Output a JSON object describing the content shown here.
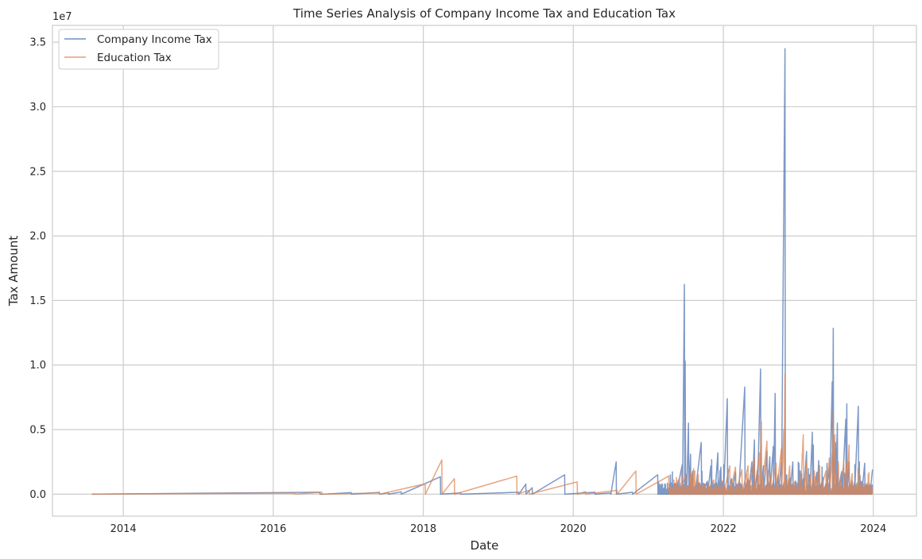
{
  "chart_data": {
    "type": "line",
    "title": "Time Series Analysis of Company Income Tax and Education Tax",
    "xlabel": "Date",
    "ylabel": "Tax Amount",
    "y_offset_label": "1e7",
    "y_scale_multiplier": 10000000,
    "xlim": [
      "2013-01-21",
      "2024-07-29"
    ],
    "ylim": [
      -1700000,
      36300000
    ],
    "x_ticks": [
      "2014",
      "2016",
      "2018",
      "2020",
      "2022",
      "2024"
    ],
    "y_ticks": [
      0,
      5000000,
      10000000,
      15000000,
      20000000,
      25000000,
      30000000,
      35000000
    ],
    "y_tick_labels": [
      "0.0",
      "0.5",
      "1.0",
      "1.5",
      "2.0",
      "2.5",
      "3.0",
      "3.5"
    ],
    "grid": true,
    "legend_position": "top-left",
    "series": [
      {
        "name": "Company Income Tax",
        "color": "#4c72b0",
        "points": [
          [
            "2013-08-01",
            0
          ],
          [
            "2016-08-15",
            150000
          ],
          [
            "2016-09-01",
            0
          ],
          [
            "2017-01-15",
            120000
          ],
          [
            "2017-06-01",
            140000
          ],
          [
            "2017-07-15",
            110000
          ],
          [
            "2017-09-15",
            180000
          ],
          [
            "2018-03-25",
            1350000
          ],
          [
            "2018-07-01",
            100000
          ],
          [
            "2019-04-10",
            150000
          ],
          [
            "2019-05-15",
            780000
          ],
          [
            "2019-06-15",
            500000
          ],
          [
            "2019-11-20",
            1500000
          ],
          [
            "2020-04-15",
            150000
          ],
          [
            "2020-07-01",
            100000
          ],
          [
            "2020-07-28",
            2500000
          ],
          [
            "2020-10-15",
            150000
          ],
          [
            "2021-02-15",
            1500000
          ],
          [
            "2021-05-15",
            500000
          ],
          [
            "2021-06-15",
            2300000
          ],
          [
            "2021-06-25",
            16250000
          ],
          [
            "2021-06-29",
            10300000
          ],
          [
            "2021-07-05",
            1500000
          ],
          [
            "2021-07-15",
            5500000
          ],
          [
            "2021-07-25",
            3100000
          ],
          [
            "2021-08-05",
            1800000
          ],
          [
            "2021-08-15",
            600000
          ],
          [
            "2021-09-15",
            4000000
          ],
          [
            "2021-10-15",
            1000000
          ],
          [
            "2021-11-01",
            2200000
          ],
          [
            "2021-11-20",
            800000
          ],
          [
            "2021-12-05",
            3200000
          ],
          [
            "2021-12-20",
            2100000
          ],
          [
            "2022-01-01",
            1000000
          ],
          [
            "2022-01-20",
            7400000
          ],
          [
            "2022-02-10",
            1200000
          ],
          [
            "2022-03-01",
            1700000
          ],
          [
            "2022-03-15",
            800000
          ],
          [
            "2022-04-15",
            8300000
          ],
          [
            "2022-05-01",
            1200000
          ],
          [
            "2022-05-20",
            2500000
          ],
          [
            "2022-06-01",
            4200000
          ],
          [
            "2022-06-15",
            1800000
          ],
          [
            "2022-07-01",
            9700000
          ],
          [
            "2022-07-15",
            2200000
          ],
          [
            "2022-08-01",
            3300000
          ],
          [
            "2022-08-15",
            2900000
          ],
          [
            "2022-09-01",
            3700000
          ],
          [
            "2022-09-10",
            7800000
          ],
          [
            "2022-09-25",
            1500000
          ],
          [
            "2022-10-10",
            2500000
          ],
          [
            "2022-10-28",
            34500000
          ],
          [
            "2022-11-05",
            1500000
          ],
          [
            "2022-11-20",
            1200000
          ],
          [
            "2022-12-05",
            2500000
          ],
          [
            "2022-12-20",
            1000000
          ],
          [
            "2023-01-10",
            1800000
          ],
          [
            "2023-01-25",
            1200000
          ],
          [
            "2023-02-10",
            3300000
          ],
          [
            "2023-02-25",
            1500000
          ],
          [
            "2023-03-10",
            4800000
          ],
          [
            "2023-03-15",
            3800000
          ],
          [
            "2023-04-01",
            1700000
          ],
          [
            "2023-04-10",
            2600000
          ],
          [
            "2023-05-01",
            1300000
          ],
          [
            "2023-05-15",
            800000
          ],
          [
            "2023-06-01",
            2000000
          ],
          [
            "2023-06-15",
            8700000
          ],
          [
            "2023-06-20",
            12850000
          ],
          [
            "2023-07-01",
            4000000
          ],
          [
            "2023-07-10",
            5500000
          ],
          [
            "2023-08-01",
            1500000
          ],
          [
            "2023-08-20",
            5800000
          ],
          [
            "2023-08-25",
            7000000
          ],
          [
            "2023-09-05",
            2500000
          ],
          [
            "2023-09-20",
            1000000
          ],
          [
            "2023-10-01",
            900000
          ],
          [
            "2023-10-20",
            6800000
          ],
          [
            "2023-11-05",
            1000000
          ],
          [
            "2023-11-20",
            2400000
          ],
          [
            "2023-12-01",
            800000
          ],
          [
            "2023-12-15",
            500000
          ],
          [
            "2023-12-28",
            1900000
          ]
        ]
      },
      {
        "name": "Education Tax",
        "color": "#dd8452",
        "points": [
          [
            "2013-08-01",
            0
          ],
          [
            "2016-04-15",
            80000
          ],
          [
            "2016-08-25",
            150000
          ],
          [
            "2017-06-01",
            100000
          ],
          [
            "2018-01-10",
            800000
          ],
          [
            "2018-04-01",
            2650000
          ],
          [
            "2018-06-01",
            1200000
          ],
          [
            "2019-04-01",
            1400000
          ],
          [
            "2019-06-01",
            300000
          ],
          [
            "2020-01-20",
            950000
          ],
          [
            "2020-03-01",
            200000
          ],
          [
            "2020-08-01",
            300000
          ],
          [
            "2020-11-01",
            1800000
          ],
          [
            "2021-04-10",
            1400000
          ],
          [
            "2021-06-01",
            1200000
          ],
          [
            "2021-07-01",
            1500000
          ],
          [
            "2021-08-15",
            1800000
          ],
          [
            "2021-09-01",
            1500000
          ],
          [
            "2021-10-01",
            800000
          ],
          [
            "2021-11-15",
            1100000
          ],
          [
            "2022-01-01",
            1100000
          ],
          [
            "2022-02-01",
            2200000
          ],
          [
            "2022-03-01",
            2100000
          ],
          [
            "2022-04-01",
            1900000
          ],
          [
            "2022-05-01",
            2200000
          ],
          [
            "2022-06-01",
            2700000
          ],
          [
            "2022-06-25",
            3200000
          ],
          [
            "2022-07-05",
            5600000
          ],
          [
            "2022-08-01",
            4100000
          ],
          [
            "2022-08-20",
            1500000
          ],
          [
            "2022-09-15",
            2400000
          ],
          [
            "2022-10-10",
            3500000
          ],
          [
            "2022-10-22",
            5000000
          ],
          [
            "2022-10-28",
            9300000
          ],
          [
            "2022-11-05",
            1100000
          ],
          [
            "2022-11-20",
            2200000
          ],
          [
            "2022-12-15",
            1000000
          ],
          [
            "2023-01-10",
            1200000
          ],
          [
            "2023-01-25",
            4600000
          ],
          [
            "2023-02-10",
            2500000
          ],
          [
            "2023-03-01",
            1600000
          ],
          [
            "2023-03-20",
            1800000
          ],
          [
            "2023-04-15",
            2200000
          ],
          [
            "2023-05-15",
            1800000
          ],
          [
            "2023-06-01",
            2800000
          ],
          [
            "2023-06-15",
            3200000
          ],
          [
            "2023-06-20",
            6400000
          ],
          [
            "2023-06-28",
            4600000
          ],
          [
            "2023-07-15",
            2500000
          ],
          [
            "2023-08-10",
            2300000
          ],
          [
            "2023-08-25",
            2600000
          ],
          [
            "2023-09-05",
            3800000
          ],
          [
            "2023-09-20",
            1600000
          ],
          [
            "2023-10-15",
            900000
          ],
          [
            "2023-11-15",
            800000
          ],
          [
            "2023-12-05",
            900000
          ],
          [
            "2023-12-28",
            400000
          ]
        ]
      }
    ]
  }
}
